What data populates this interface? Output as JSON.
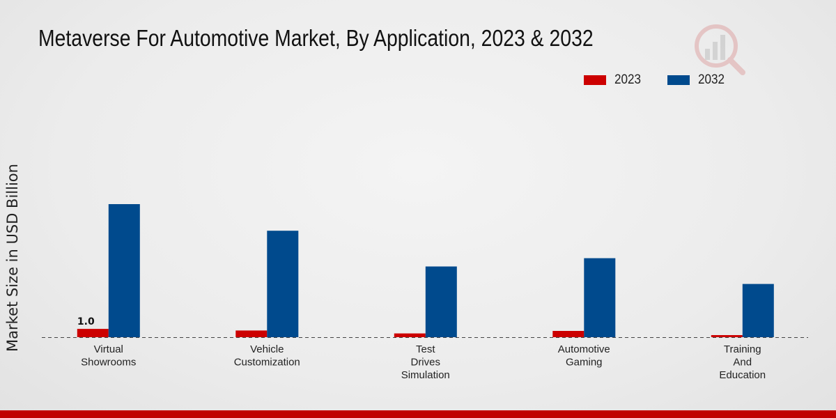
{
  "title": "Metaverse For Automotive Market, By Application, 2023 & 2032",
  "ylabel": "Market Size in USD Billion",
  "colors": {
    "s2023": "#cc0000",
    "s2032": "#004a8d",
    "footer": "#c00000"
  },
  "chart_data": {
    "type": "bar",
    "title": "Metaverse For Automotive Market, By Application, 2023 & 2032",
    "xlabel": "",
    "ylabel": "Market Size in USD Billion",
    "legend": "top-right",
    "grid": false,
    "ylim": [
      0,
      16
    ],
    "categories": [
      [
        "Virtual",
        "Showrooms"
      ],
      [
        "Vehicle",
        "Customization"
      ],
      [
        "Test",
        "Drives",
        "Simulation"
      ],
      [
        "Automotive",
        "Gaming"
      ],
      [
        "Training",
        "And",
        "Education"
      ]
    ],
    "series": [
      {
        "name": "2023",
        "values": [
          1.0,
          0.8,
          0.45,
          0.75,
          0.25
        ]
      },
      {
        "name": "2032",
        "values": [
          16.0,
          12.8,
          8.5,
          9.5,
          6.4
        ]
      }
    ],
    "data_labels": [
      {
        "series": 0,
        "index": 0,
        "text": "1.0"
      }
    ]
  }
}
